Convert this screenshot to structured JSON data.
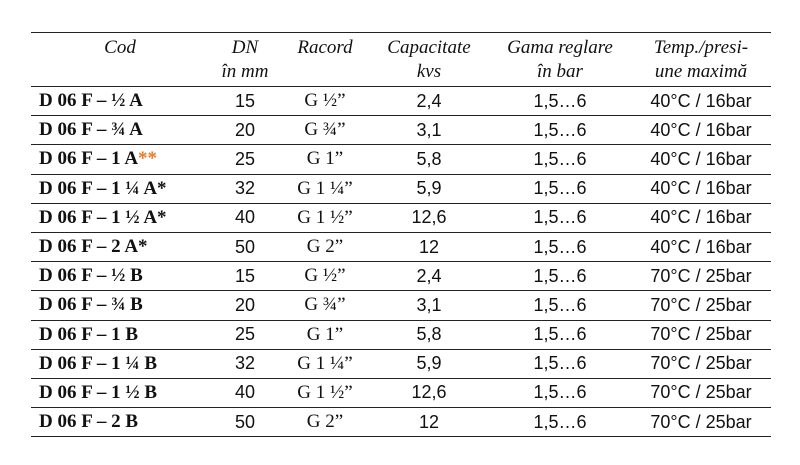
{
  "header": {
    "cod": "Cod",
    "dn": [
      "DN",
      "în mm"
    ],
    "racord": "Racord",
    "capacitate": [
      "Capacitate",
      "kvs"
    ],
    "gama": [
      "Gama reglare",
      "în bar"
    ],
    "temp": [
      "Temp./presi-",
      "une maximă"
    ]
  },
  "colors": {
    "asterisk_highlight": "#e87722"
  },
  "rows": [
    {
      "code": "D 06 F – ½ A",
      "mark": "",
      "dn": "15",
      "racord": "G ½”",
      "kvs": "2,4",
      "range": "1,5…6",
      "temp": "40°C / 16bar"
    },
    {
      "code": "D 06 F – ¾ A",
      "mark": "",
      "dn": "20",
      "racord": "G ¾”",
      "kvs": "3,1",
      "range": "1,5…6",
      "temp": "40°C / 16bar"
    },
    {
      "code": "D 06 F – 1 A",
      "mark": "**",
      "dn": "25",
      "racord": "G 1”",
      "kvs": "5,8",
      "range": "1,5…6",
      "temp": "40°C / 16bar"
    },
    {
      "code": "D 06 F – 1 ¼ A*",
      "mark": "",
      "dn": "32",
      "racord": "G 1 ¼”",
      "kvs": "5,9",
      "range": "1,5…6",
      "temp": "40°C / 16bar"
    },
    {
      "code": "D 06 F – 1 ½ A*",
      "mark": "",
      "dn": "40",
      "racord": "G 1 ½”",
      "kvs": "12,6",
      "range": "1,5…6",
      "temp": "40°C / 16bar"
    },
    {
      "code": "D 06 F – 2 A*",
      "mark": "",
      "dn": "50",
      "racord": "G 2”",
      "kvs": "12",
      "range": "1,5…6",
      "temp": "40°C / 16bar"
    },
    {
      "code": "D 06 F – ½ B",
      "mark": "",
      "dn": "15",
      "racord": "G ½”",
      "kvs": "2,4",
      "range": "1,5…6",
      "temp": "70°C / 25bar"
    },
    {
      "code": "D 06 F – ¾ B",
      "mark": "",
      "dn": "20",
      "racord": "G ¾”",
      "kvs": "3,1",
      "range": "1,5…6",
      "temp": "70°C / 25bar"
    },
    {
      "code": "D 06 F – 1 B",
      "mark": "",
      "dn": "25",
      "racord": "G 1”",
      "kvs": "5,8",
      "range": "1,5…6",
      "temp": "70°C / 25bar"
    },
    {
      "code": "D 06 F – 1 ¼ B",
      "mark": "",
      "dn": "32",
      "racord": "G 1 ¼”",
      "kvs": "5,9",
      "range": "1,5…6",
      "temp": "70°C / 25bar"
    },
    {
      "code": "D 06 F – 1 ½ B",
      "mark": "",
      "dn": "40",
      "racord": "G 1 ½”",
      "kvs": "12,6",
      "range": "1,5…6",
      "temp": "70°C / 25bar"
    },
    {
      "code": "D 06 F – 2 B",
      "mark": "",
      "dn": "50",
      "racord": "G 2”",
      "kvs": "12",
      "range": "1,5…6",
      "temp": "70°C / 25bar"
    }
  ]
}
